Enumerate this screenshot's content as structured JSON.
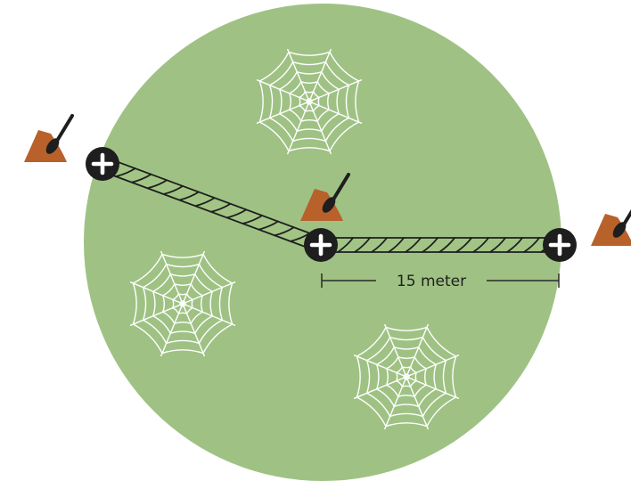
{
  "diagram": {
    "distance_label": "15 meter",
    "colors": {
      "field": "#9fc284",
      "web": "#ffffff",
      "rope_fill": "#a2c485",
      "rope_stroke": "#1e1e1e",
      "anchor_fill": "#1e1e1e",
      "anchor_plus": "#ffffff",
      "mound": "#b8612a",
      "dimension_line": "#2a2a2a"
    },
    "icons": {
      "spider_web": "spider-web-icon",
      "anchor": "plus-anchor-icon",
      "marker": "dirt-mound-with-tool-icon"
    }
  }
}
